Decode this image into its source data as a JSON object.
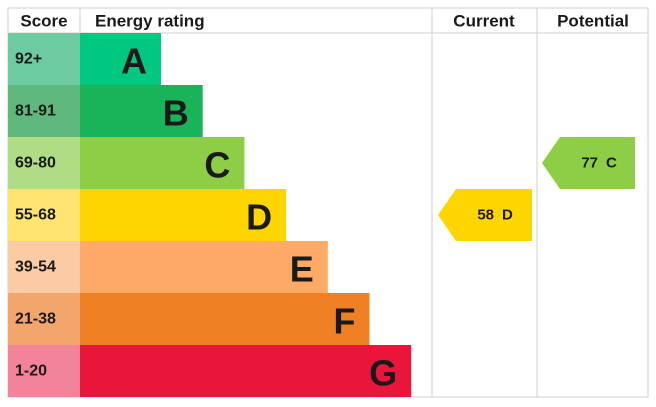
{
  "chart_data": {
    "type": "epc",
    "headers": {
      "score": "Score",
      "rating": "Energy rating",
      "current": "Current",
      "potential": "Potential"
    },
    "bands": [
      {
        "score": "92+",
        "letter": "A",
        "color": "#00c781",
        "score_color": "#6ccba0"
      },
      {
        "score": "81-91",
        "letter": "B",
        "color": "#19b459",
        "score_color": "#5fb97f"
      },
      {
        "score": "69-80",
        "letter": "C",
        "color": "#8dce46",
        "score_color": "#b0dc86"
      },
      {
        "score": "55-68",
        "letter": "D",
        "color": "#ffd500",
        "score_color": "#ffe570"
      },
      {
        "score": "39-54",
        "letter": "E",
        "color": "#fcaa65",
        "score_color": "#fbcba5"
      },
      {
        "score": "21-38",
        "letter": "F",
        "color": "#ef8023",
        "score_color": "#f3a66c"
      },
      {
        "score": "1-20",
        "letter": "G",
        "color": "#e9153b",
        "score_color": "#f2839a"
      }
    ],
    "current": {
      "value": 58,
      "letter": "D"
    },
    "potential": {
      "value": 77,
      "letter": "C"
    }
  }
}
